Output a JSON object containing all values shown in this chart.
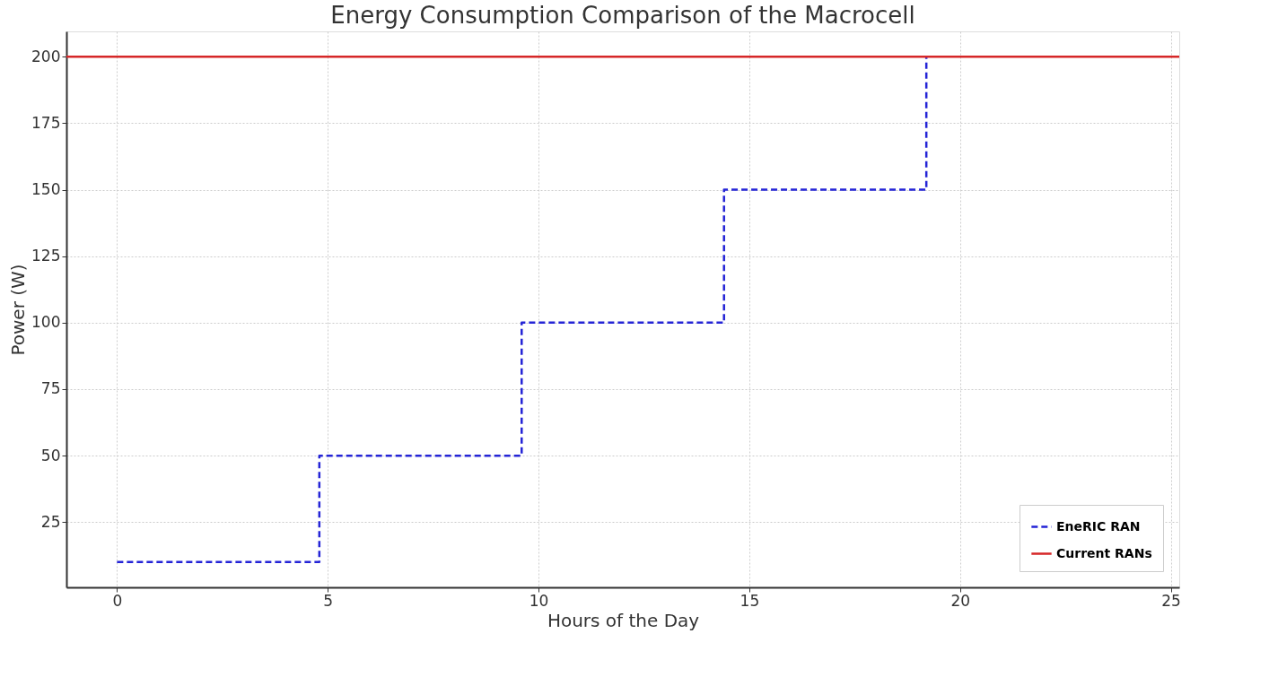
{
  "chart_data": {
    "type": "step",
    "title": "Energy Consumption Comparison of the Macrocell",
    "xlabel": "Hours of the Day",
    "ylabel": "Power (W)",
    "series": [
      {
        "name": "EneRIC RAN",
        "color": "#2424d6",
        "line_style": "dashed",
        "x": [
          0,
          4.8,
          9.6,
          14.4,
          19.2
        ],
        "values": [
          10,
          50,
          100,
          150,
          200
        ]
      },
      {
        "name": "Current RANs",
        "type": "line",
        "color": "#d62728",
        "line_style": "solid",
        "x": [
          -1.2,
          25.2
        ],
        "values": [
          200,
          200
        ]
      }
    ],
    "xlim": [
      -1.2,
      25.2
    ],
    "xticks": [
      0,
      5,
      10,
      15,
      20,
      25
    ],
    "ylim": [
      0.5,
      209.5
    ],
    "yticks": [
      25,
      50,
      75,
      100,
      125,
      150,
      175,
      200
    ],
    "grid": true,
    "legend": "bottom right"
  }
}
